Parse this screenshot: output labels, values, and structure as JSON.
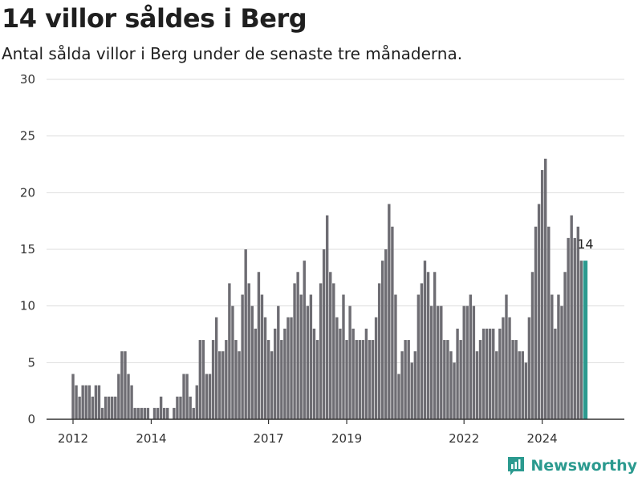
{
  "chart_data": {
    "type": "bar",
    "title": "14 villor såldes i Berg",
    "subtitle": "Antal sålda villor i Berg under de senaste tre månaderna.",
    "xlabel": "",
    "ylabel": "",
    "ylim": [
      0,
      30
    ],
    "yticks": [
      0,
      5,
      10,
      15,
      20,
      25,
      30
    ],
    "xticks": [
      "2012",
      "2014",
      "2017",
      "2019",
      "2022",
      "2024"
    ],
    "grid": true,
    "annotation": "14",
    "colors": {
      "bar": "#6e6d73",
      "highlight": "#2b9a8f",
      "grid": "#dddddd",
      "axis": "#333333"
    },
    "values": [
      4,
      3,
      2,
      3,
      3,
      3,
      2,
      3,
      3,
      1,
      2,
      2,
      2,
      2,
      4,
      6,
      6,
      4,
      3,
      1,
      1,
      1,
      1,
      1,
      0,
      1,
      1,
      2,
      1,
      1,
      0,
      1,
      2,
      2,
      4,
      4,
      2,
      1,
      3,
      7,
      7,
      4,
      4,
      7,
      9,
      6,
      6,
      7,
      12,
      10,
      7,
      6,
      11,
      15,
      12,
      10,
      8,
      13,
      11,
      9,
      7,
      6,
      8,
      10,
      7,
      8,
      9,
      9,
      12,
      13,
      11,
      14,
      10,
      11,
      8,
      7,
      12,
      15,
      18,
      13,
      12,
      9,
      8,
      11,
      7,
      10,
      8,
      7,
      7,
      7,
      8,
      7,
      7,
      9,
      12,
      14,
      15,
      19,
      17,
      11,
      4,
      6,
      7,
      7,
      5,
      6,
      11,
      12,
      14,
      13,
      10,
      13,
      10,
      10,
      7,
      7,
      6,
      5,
      8,
      7,
      10,
      10,
      11,
      10,
      6,
      7,
      8,
      8,
      8,
      8,
      6,
      8,
      9,
      11,
      9,
      7,
      7,
      6,
      6,
      5,
      9,
      13,
      17,
      19,
      22,
      23,
      17,
      11,
      8,
      11,
      10,
      13,
      16,
      18,
      16,
      17,
      14,
      14
    ]
  },
  "brand": {
    "name": "Newsworthy",
    "icon": "newsworthy-logo-icon"
  }
}
